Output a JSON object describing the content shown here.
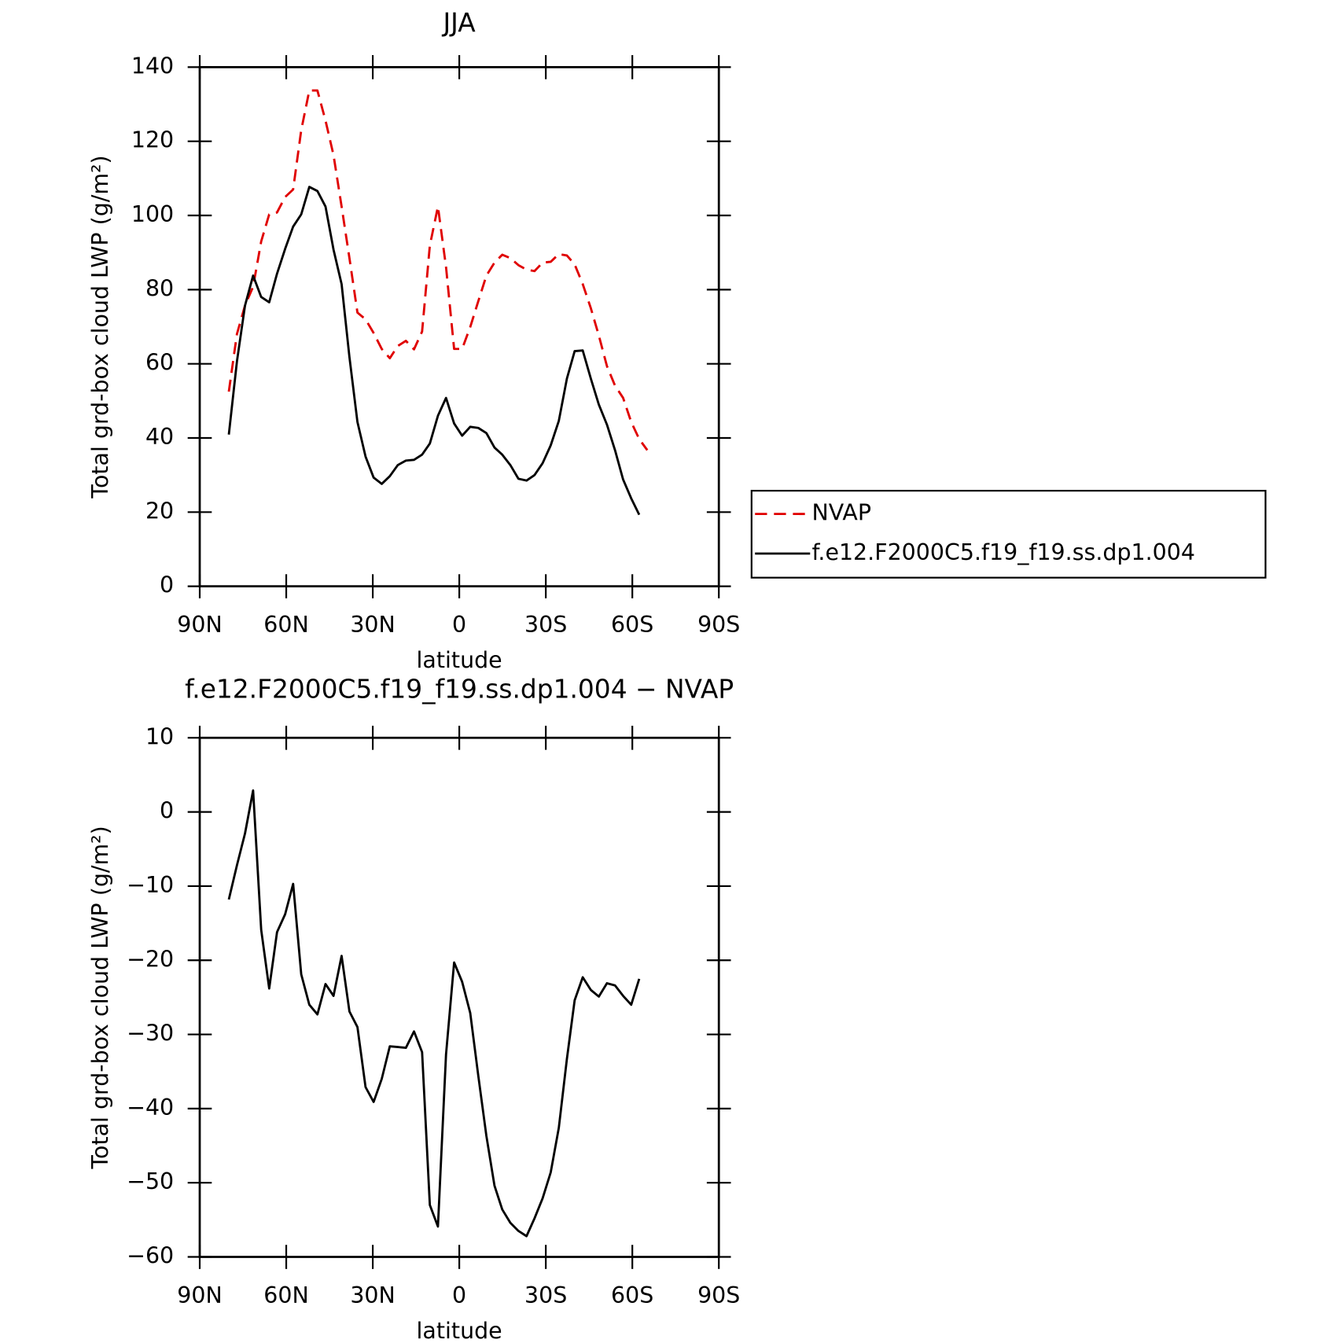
{
  "chart_data": [
    {
      "type": "line",
      "title": "JJA",
      "xlabel": "latitude",
      "ylabel": "Total grd-box cloud LWP (g/m²)",
      "xlim": [
        90,
        -90
      ],
      "ylim": [
        0,
        140
      ],
      "xticks": [
        {
          "value": 90,
          "label": "90N"
        },
        {
          "value": 60,
          "label": "60N"
        },
        {
          "value": 30,
          "label": "30N"
        },
        0,
        {
          "value": -30,
          "label": "30S"
        },
        {
          "value": -60,
          "label": "60S"
        },
        {
          "value": -90,
          "label": "90S"
        }
      ],
      "yticks": [
        0,
        20,
        40,
        60,
        80,
        100,
        120,
        140
      ],
      "legend": "right",
      "series": [
        {
          "name": "NVAP",
          "color": "#e00000",
          "dash": "dashed",
          "x": [
            79.9,
            77.1,
            74.3,
            71.5,
            68.7,
            65.9,
            63.2,
            60.4,
            57.6,
            54.8,
            52.0,
            49.2,
            46.4,
            43.6,
            40.8,
            38.1,
            35.3,
            32.5,
            29.7,
            26.9,
            24.1,
            21.3,
            18.5,
            15.7,
            12.9,
            10.2,
            7.4,
            4.6,
            1.8,
            -1.0,
            -3.8,
            -6.6,
            -9.4,
            -12.2,
            -14.9,
            -17.7,
            -20.5,
            -23.3,
            -26.1,
            -28.9,
            -31.7,
            -34.5,
            -37.3,
            -40.0,
            -42.8,
            -45.6,
            -48.4,
            -51.2,
            -54.0,
            -56.8,
            -59.6,
            -62.4,
            -65.2
          ],
          "values": [
            52.5,
            68,
            75.7,
            80.8,
            93,
            100.3,
            100.8,
            105,
            107,
            123,
            133.7,
            133.7,
            125.6,
            116.3,
            102.4,
            88.5,
            73.8,
            72,
            68.3,
            64,
            61.5,
            64.8,
            66.2,
            63.9,
            68.7,
            91.9,
            102.4,
            86.1,
            64,
            64,
            69.9,
            76.9,
            83.8,
            87.3,
            89.4,
            88.5,
            86.6,
            85.4,
            85,
            87.3,
            87.5,
            89.6,
            89.2,
            86.8,
            81.5,
            75,
            67.6,
            59.4,
            54.1,
            50.8,
            44.3,
            39.7,
            36.7
          ]
        },
        {
          "name": "f.e12.F2000C5.f19_f19.ss.dp1.004",
          "color": "#000000",
          "dash": "solid",
          "x": [
            79.9,
            77.1,
            74.3,
            71.5,
            68.7,
            65.9,
            63.2,
            60.4,
            57.6,
            54.8,
            52.0,
            49.2,
            46.4,
            43.6,
            40.8,
            38.1,
            35.3,
            32.5,
            29.7,
            26.9,
            24.1,
            21.3,
            18.5,
            15.7,
            12.9,
            10.2,
            7.4,
            4.6,
            1.8,
            -1.0,
            -3.8,
            -6.6,
            -9.4,
            -12.2,
            -14.9,
            -17.7,
            -20.5,
            -23.3,
            -26.1,
            -28.9,
            -31.7,
            -34.5,
            -37.3,
            -40.0,
            -42.8,
            -45.6,
            -48.4,
            -51.2,
            -54.0,
            -56.8,
            -59.6,
            -62.4
          ],
          "values": [
            40.9,
            60.6,
            75.7,
            83.8,
            78,
            76.6,
            84.3,
            91,
            97,
            100.3,
            107.7,
            106.6,
            102.4,
            90.8,
            81.5,
            61.8,
            44.3,
            35,
            29.3,
            27.6,
            29.7,
            32.7,
            33.9,
            34.1,
            35.5,
            38.5,
            46,
            50.8,
            43.9,
            40.6,
            43,
            42.7,
            41.3,
            37.4,
            35.5,
            32.7,
            29,
            28.5,
            30,
            33.2,
            38,
            44.6,
            56,
            63.4,
            63.6,
            56,
            49,
            43.6,
            36.7,
            28.8,
            23.7,
            19.3
          ]
        }
      ]
    },
    {
      "type": "line",
      "title": "f.e12.F2000C5.f19_f19.ss.dp1.004 − NVAP",
      "xlabel": "latitude",
      "ylabel": "Total grd-box cloud LWP (g/m²)",
      "xlim": [
        90,
        -90
      ],
      "ylim": [
        -60,
        10
      ],
      "xticks": [
        {
          "value": 90,
          "label": "90N"
        },
        {
          "value": 60,
          "label": "60N"
        },
        {
          "value": 30,
          "label": "30N"
        },
        0,
        {
          "value": -30,
          "label": "30S"
        },
        {
          "value": -60,
          "label": "60S"
        },
        {
          "value": -90,
          "label": "90S"
        }
      ],
      "yticks": [
        {
          "value": -60,
          "label": "−60"
        },
        {
          "value": -50,
          "label": "−50"
        },
        {
          "value": -40,
          "label": "−40"
        },
        {
          "value": -30,
          "label": "−30"
        },
        {
          "value": -20,
          "label": "−20"
        },
        {
          "value": -10,
          "label": "−10"
        },
        0,
        10
      ],
      "series": [
        {
          "color": "#000000",
          "dash": "solid",
          "x": [
            79.9,
            77.1,
            74.3,
            71.5,
            68.7,
            65.9,
            63.2,
            60.4,
            57.6,
            54.8,
            52.0,
            49.2,
            46.4,
            43.6,
            40.8,
            38.1,
            35.3,
            32.5,
            29.7,
            26.9,
            24.1,
            21.3,
            18.5,
            15.7,
            12.9,
            10.2,
            7.4,
            4.6,
            1.8,
            -1.0,
            -3.8,
            -6.6,
            -9.4,
            -12.2,
            -14.9,
            -17.7,
            -20.5,
            -23.3,
            -26.1,
            -28.9,
            -31.7,
            -34.5,
            -37.3,
            -40.0,
            -42.8,
            -45.6,
            -48.4,
            -51.2,
            -54.0,
            -56.8,
            -59.6,
            -62.4
          ],
          "values": [
            -11.8,
            -7.2,
            -2.9,
            2.9,
            -15.9,
            -23.8,
            -16.2,
            -13.8,
            -9.7,
            -21.9,
            -26,
            -27.3,
            -23.2,
            -24.8,
            -19.4,
            -26.9,
            -29,
            -37.1,
            -39.1,
            -36,
            -31.6,
            -31.7,
            -31.8,
            -29.6,
            -32.4,
            -53,
            -55.9,
            -32.7,
            -20.3,
            -22.9,
            -27.1,
            -35.6,
            -43.7,
            -50.4,
            -53.6,
            -55.4,
            -56.5,
            -57.2,
            -54.8,
            -52.1,
            -48.6,
            -42.6,
            -33.3,
            -25.4,
            -22.3,
            -24,
            -24.9,
            -23.1,
            -23.4,
            -24.8,
            -26,
            -22.5
          ]
        }
      ]
    }
  ]
}
